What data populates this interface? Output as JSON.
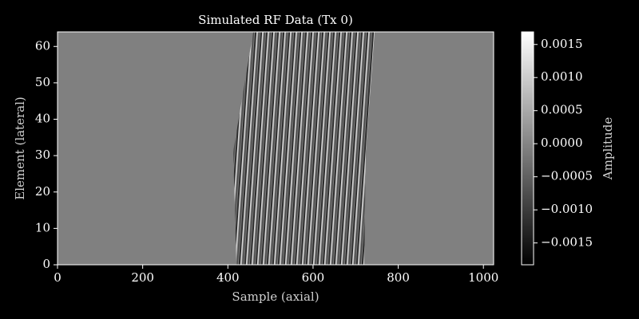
{
  "chart_data": {
    "type": "heatmap",
    "title": "Simulated RF Data (Tx 0)",
    "x_label": "Sample (axial)",
    "y_label": "Element (lateral)",
    "xlim": [
      0,
      1024
    ],
    "xticks": [
      0,
      200,
      400,
      600,
      800,
      1000
    ],
    "ylim": [
      0,
      64
    ],
    "yticks": [
      0,
      10,
      20,
      30,
      40,
      50,
      60
    ],
    "colormap": "gray",
    "colorbar": {
      "label": "Amplitude",
      "lim": [
        -0.00183,
        0.00169
      ],
      "ticks": [
        {
          "value": 0.0015,
          "label": "0.0015"
        },
        {
          "value": 0.001,
          "label": "0.0010"
        },
        {
          "value": 0.0005,
          "label": "0.0005"
        },
        {
          "value": 0,
          "label": "0.0000"
        },
        {
          "value": -0.0005,
          "label": "−0.0005"
        },
        {
          "value": -0.001,
          "label": "−0.0010"
        },
        {
          "value": -0.0015,
          "label": "−0.0015"
        }
      ]
    }
  }
}
